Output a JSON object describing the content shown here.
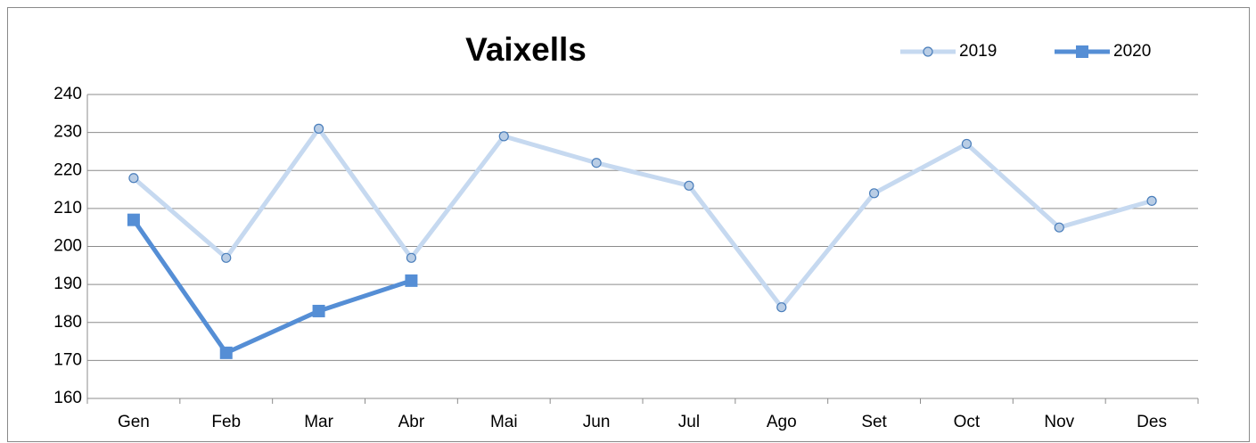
{
  "chart_data": {
    "type": "line",
    "title": "Vaixells",
    "categories": [
      "Gen",
      "Feb",
      "Mar",
      "Abr",
      "Mai",
      "Jun",
      "Jul",
      "Ago",
      "Set",
      "Oct",
      "Nov",
      "Des"
    ],
    "series": [
      {
        "name": "2019",
        "color": "#c6d9f0",
        "marker": "circle",
        "values": [
          218,
          197,
          231,
          197,
          229,
          222,
          216,
          184,
          214,
          227,
          205,
          212
        ]
      },
      {
        "name": "2020",
        "color": "#558ed5",
        "marker": "square",
        "values": [
          207,
          172,
          183,
          191,
          null,
          null,
          null,
          null,
          null,
          null,
          null,
          null
        ]
      }
    ],
    "ylim": [
      160,
      240
    ],
    "yticks": [
      160,
      170,
      180,
      190,
      200,
      210,
      220,
      230,
      240
    ],
    "grid": true,
    "legend": "top-right"
  }
}
